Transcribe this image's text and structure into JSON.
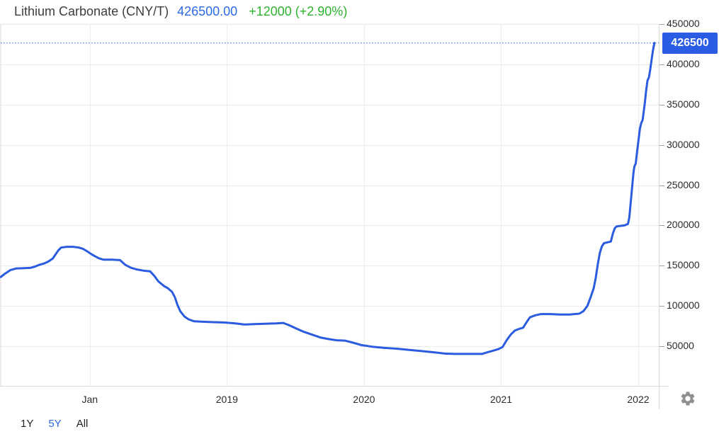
{
  "header": {
    "title": "Lithium Carbonate (CNY/T)",
    "last_price": "426500.00",
    "change": "+12000 (+2.90%)"
  },
  "price_badge": {
    "value": "426500"
  },
  "range_selector": {
    "items": [
      {
        "label": "1Y",
        "active": false
      },
      {
        "label": "5Y",
        "active": true
      },
      {
        "label": "All",
        "active": false
      }
    ]
  },
  "icons": {
    "settings": "gear-icon"
  },
  "colors": {
    "line": "#2b5ce0",
    "badge_bg": "#2b5ce4",
    "dotted_line": "#2b5ce0",
    "price_text": "#2d69e6",
    "change_text": "#2eb42e",
    "active_range": "#2d69e6",
    "grid": "#ececec",
    "border": "#d9d9d9",
    "tick": "#a0a0a0",
    "axis_text": "#2b2b2b",
    "gear": "#8f8f8f"
  },
  "chart_data": {
    "type": "line",
    "title": "Lithium Carbonate (CNY/T)",
    "unit": "CNY/T",
    "current_value": 426500,
    "dotted_line_value": 426500,
    "xlim": [
      2017.35,
      2022.15
    ],
    "ylim": [
      0,
      450000
    ],
    "grid": true,
    "legend_position": "none",
    "y_ticks": [
      450000,
      400000,
      350000,
      300000,
      250000,
      200000,
      150000,
      100000,
      50000
    ],
    "x_ticks": [
      {
        "label": "Jan",
        "year": 2018
      },
      {
        "label": "2019",
        "year": 2019
      },
      {
        "label": "2020",
        "year": 2020
      },
      {
        "label": "2021",
        "year": 2021
      },
      {
        "label": "2022",
        "year": 2022
      }
    ],
    "series": [
      {
        "name": "Lithium Carbonate",
        "points": [
          [
            2017.35,
            136000
          ],
          [
            2017.38,
            140000
          ],
          [
            2017.42,
            144500
          ],
          [
            2017.46,
            146500
          ],
          [
            2017.52,
            147000
          ],
          [
            2017.57,
            147500
          ],
          [
            2017.6,
            149000
          ],
          [
            2017.63,
            151000
          ],
          [
            2017.67,
            153000
          ],
          [
            2017.7,
            155500
          ],
          [
            2017.73,
            159000
          ],
          [
            2017.75,
            164000
          ],
          [
            2017.77,
            169000
          ],
          [
            2017.79,
            172500
          ],
          [
            2017.83,
            173500
          ],
          [
            2017.88,
            173500
          ],
          [
            2017.92,
            172500
          ],
          [
            2017.95,
            171000
          ],
          [
            2017.98,
            168000
          ],
          [
            2018.01,
            164500
          ],
          [
            2018.04,
            161500
          ],
          [
            2018.07,
            159000
          ],
          [
            2018.1,
            157500
          ],
          [
            2018.16,
            157500
          ],
          [
            2018.22,
            157000
          ],
          [
            2018.26,
            151000
          ],
          [
            2018.3,
            147500
          ],
          [
            2018.34,
            145500
          ],
          [
            2018.39,
            144000
          ],
          [
            2018.44,
            143000
          ],
          [
            2018.47,
            137500
          ],
          [
            2018.5,
            130500
          ],
          [
            2018.54,
            125000
          ],
          [
            2018.57,
            122000
          ],
          [
            2018.6,
            117500
          ],
          [
            2018.62,
            111000
          ],
          [
            2018.64,
            101000
          ],
          [
            2018.66,
            93500
          ],
          [
            2018.69,
            87000
          ],
          [
            2018.72,
            83500
          ],
          [
            2018.76,
            81000
          ],
          [
            2018.82,
            80500
          ],
          [
            2018.9,
            80000
          ],
          [
            2018.98,
            79500
          ],
          [
            2019.06,
            78500
          ],
          [
            2019.13,
            77000
          ],
          [
            2019.2,
            77500
          ],
          [
            2019.28,
            78000
          ],
          [
            2019.36,
            78500
          ],
          [
            2019.41,
            79000
          ],
          [
            2019.45,
            76500
          ],
          [
            2019.5,
            72500
          ],
          [
            2019.56,
            68000
          ],
          [
            2019.62,
            64500
          ],
          [
            2019.68,
            61000
          ],
          [
            2019.74,
            59000
          ],
          [
            2019.8,
            57500
          ],
          [
            2019.86,
            57000
          ],
          [
            2019.92,
            54500
          ],
          [
            2019.98,
            51500
          ],
          [
            2020.06,
            49500
          ],
          [
            2020.15,
            48000
          ],
          [
            2020.24,
            47000
          ],
          [
            2020.33,
            45500
          ],
          [
            2020.42,
            44000
          ],
          [
            2020.51,
            42500
          ],
          [
            2020.59,
            41000
          ],
          [
            2020.66,
            40500
          ],
          [
            2020.76,
            40500
          ],
          [
            2020.86,
            40500
          ],
          [
            2020.9,
            42500
          ],
          [
            2020.94,
            44500
          ],
          [
            2020.98,
            46500
          ],
          [
            2021.01,
            49000
          ],
          [
            2021.04,
            57500
          ],
          [
            2021.07,
            64500
          ],
          [
            2021.1,
            69500
          ],
          [
            2021.13,
            71500
          ],
          [
            2021.16,
            73000
          ],
          [
            2021.19,
            81000
          ],
          [
            2021.21,
            86000
          ],
          [
            2021.25,
            88500
          ],
          [
            2021.29,
            90000
          ],
          [
            2021.36,
            90000
          ],
          [
            2021.43,
            89500
          ],
          [
            2021.5,
            89500
          ],
          [
            2021.57,
            90500
          ],
          [
            2021.6,
            93500
          ],
          [
            2021.63,
            100500
          ],
          [
            2021.655,
            112000
          ],
          [
            2021.675,
            122000
          ],
          [
            2021.69,
            135000
          ],
          [
            2021.705,
            152000
          ],
          [
            2021.72,
            166000
          ],
          [
            2021.735,
            174000
          ],
          [
            2021.75,
            178000
          ],
          [
            2021.8,
            180000
          ],
          [
            2021.815,
            190000
          ],
          [
            2021.83,
            197000
          ],
          [
            2021.845,
            199000
          ],
          [
            2021.9,
            200000
          ],
          [
            2021.925,
            202000
          ],
          [
            2021.935,
            210000
          ],
          [
            2021.945,
            228000
          ],
          [
            2021.955,
            247000
          ],
          [
            2021.965,
            265000
          ],
          [
            2021.972,
            273000
          ],
          [
            2021.982,
            277000
          ],
          [
            2021.992,
            292000
          ],
          [
            2022.002,
            306000
          ],
          [
            2022.012,
            320000
          ],
          [
            2022.022,
            327000
          ],
          [
            2022.032,
            331000
          ],
          [
            2022.048,
            352000
          ],
          [
            2022.058,
            368000
          ],
          [
            2022.068,
            380000
          ],
          [
            2022.078,
            384000
          ],
          [
            2022.088,
            394000
          ],
          [
            2022.098,
            406000
          ],
          [
            2022.108,
            418000
          ],
          [
            2022.118,
            426500
          ]
        ]
      }
    ]
  }
}
